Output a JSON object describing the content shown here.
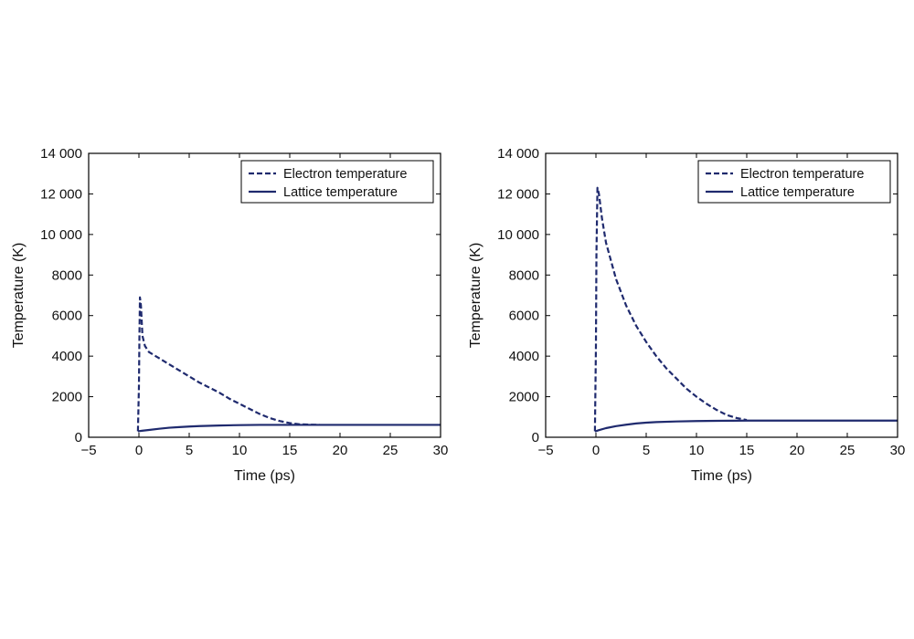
{
  "colors": {
    "line": "#1f2a6e",
    "axis": "#000000",
    "background": "#ffffff"
  },
  "chart_data": [
    {
      "type": "line",
      "xlabel": "Time (ps)",
      "ylabel": "Temperature (K)",
      "xlim": [
        -5,
        30
      ],
      "ylim": [
        0,
        14000
      ],
      "xticks": [
        -5,
        0,
        5,
        10,
        15,
        20,
        25,
        30
      ],
      "yticks": [
        0,
        2000,
        4000,
        6000,
        8000,
        10000,
        12000,
        14000
      ],
      "xtick_labels": [
        "−5",
        "0",
        "5",
        "10",
        "15",
        "20",
        "25",
        "30"
      ],
      "ytick_labels": [
        "0",
        "2000",
        "4000",
        "6000",
        "8000",
        "10 000",
        "12 000",
        "14 000"
      ],
      "grid": false,
      "legend_position": "top-right",
      "series": [
        {
          "name": "Electron temperature",
          "style": "dashed",
          "x": [
            -0.1,
            0,
            0.05,
            0.1,
            0.2,
            0.35,
            0.6,
            1,
            2,
            3,
            4,
            5,
            6,
            7,
            8,
            9,
            10,
            11,
            12,
            13,
            14,
            15,
            16,
            17,
            18
          ],
          "y": [
            300,
            2500,
            5000,
            6900,
            6500,
            5000,
            4500,
            4200,
            3900,
            3600,
            3300,
            3000,
            2700,
            2450,
            2200,
            1900,
            1650,
            1400,
            1150,
            950,
            800,
            700,
            640,
            620,
            610
          ]
        },
        {
          "name": "Lattice temperature",
          "style": "solid",
          "x": [
            -0.1,
            0,
            0.3,
            1,
            2,
            3,
            4,
            5,
            6,
            8,
            10,
            12,
            15,
            20,
            25,
            30
          ],
          "y": [
            300,
            300,
            320,
            360,
            420,
            470,
            500,
            530,
            550,
            580,
            600,
            610,
            610,
            610,
            610,
            610
          ]
        }
      ]
    },
    {
      "type": "line",
      "xlabel": "Time (ps)",
      "ylabel": "Temperature (K)",
      "xlim": [
        -5,
        30
      ],
      "ylim": [
        0,
        14000
      ],
      "xticks": [
        -5,
        0,
        5,
        10,
        15,
        20,
        25,
        30
      ],
      "yticks": [
        0,
        2000,
        4000,
        6000,
        8000,
        10000,
        12000,
        14000
      ],
      "xtick_labels": [
        "−5",
        "0",
        "5",
        "10",
        "15",
        "20",
        "25",
        "30"
      ],
      "ytick_labels": [
        "0",
        "2000",
        "4000",
        "6000",
        "8000",
        "10 000",
        "12 000",
        "14 000"
      ],
      "grid": false,
      "legend_position": "top-right",
      "series": [
        {
          "name": "Electron temperature",
          "style": "dashed",
          "x": [
            -0.1,
            0,
            0.05,
            0.15,
            0.3,
            0.6,
            1,
            2,
            3,
            4,
            5,
            6,
            7,
            8,
            9,
            10,
            11,
            12,
            13,
            14,
            15
          ],
          "y": [
            300,
            4500,
            9000,
            12300,
            12000,
            10800,
            9600,
            7800,
            6500,
            5500,
            4700,
            4000,
            3400,
            2900,
            2400,
            2000,
            1650,
            1350,
            1100,
            950,
            850
          ]
        },
        {
          "name": "Lattice temperature",
          "style": "solid",
          "x": [
            -0.1,
            0,
            0.3,
            1,
            2,
            3,
            4,
            5,
            6,
            8,
            10,
            12,
            15,
            20,
            25,
            30
          ],
          "y": [
            300,
            300,
            350,
            450,
            550,
            620,
            680,
            720,
            750,
            780,
            800,
            810,
            820,
            820,
            820,
            820
          ]
        }
      ]
    }
  ]
}
